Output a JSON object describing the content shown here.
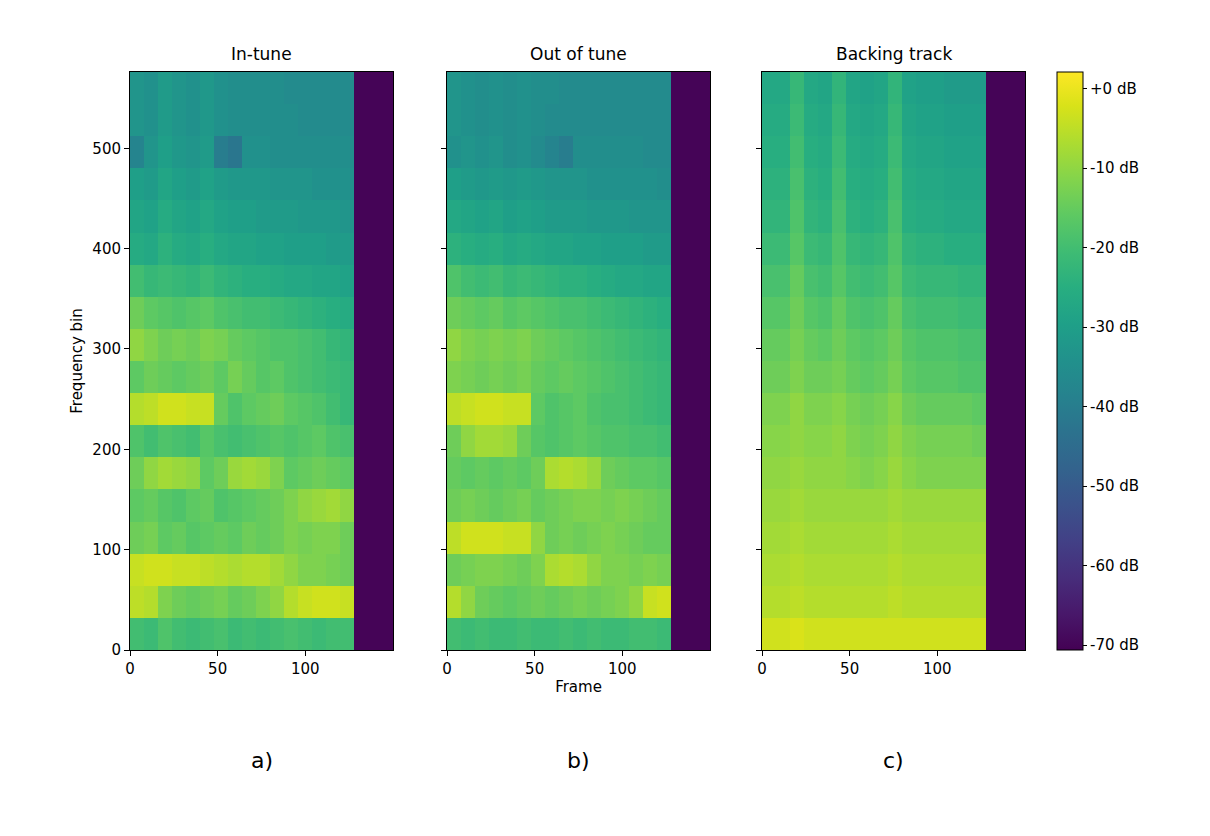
{
  "chart_data": [
    {
      "type": "heatmap",
      "title": "In-tune",
      "ylabel": "Frequency bin",
      "panel_label": "a)",
      "color": "viridis",
      "xlim": [
        0,
        150
      ],
      "ylim": [
        0,
        576
      ],
      "xticks": [
        0,
        50,
        100
      ],
      "yticks": [
        0,
        100,
        200,
        300,
        400,
        500
      ],
      "zlim": [
        -70.6,
        2.1
      ],
      "frame_edges": [
        0,
        8,
        16,
        24,
        32,
        40,
        48,
        56,
        64,
        72,
        80,
        88,
        96,
        104,
        112,
        120,
        128,
        150
      ],
      "bin_edges": [
        0,
        32,
        64,
        96,
        128,
        160,
        192,
        224,
        256,
        288,
        320,
        352,
        384,
        416,
        448,
        480,
        512,
        544,
        576
      ],
      "z": [
        [
          -20,
          -21,
          -18,
          -20,
          -21,
          -20,
          -19,
          -21,
          -20,
          -21,
          -20,
          -19,
          -20,
          -21,
          -20,
          -20,
          -70
        ],
        [
          -5,
          -6,
          -12,
          -14,
          -15,
          -14,
          -13,
          -15,
          -14,
          -12,
          -10,
          -6,
          -4,
          -3,
          -3,
          -4,
          -70
        ],
        [
          -4,
          -3,
          -3,
          -4,
          -4,
          -5,
          -6,
          -7,
          -6,
          -6,
          -8,
          -10,
          -12,
          -12,
          -13,
          -14,
          -70
        ],
        [
          -14,
          -13,
          -16,
          -15,
          -17,
          -16,
          -15,
          -16,
          -14,
          -15,
          -14,
          -12,
          -13,
          -12,
          -12,
          -14,
          -70
        ],
        [
          -16,
          -15,
          -17,
          -18,
          -16,
          -15,
          -18,
          -17,
          -16,
          -15,
          -14,
          -12,
          -10,
          -9,
          -8,
          -10,
          -70
        ],
        [
          -14,
          -10,
          -8,
          -9,
          -10,
          -16,
          -14,
          -9,
          -8,
          -9,
          -12,
          -16,
          -15,
          -14,
          -15,
          -16,
          -70
        ],
        [
          -18,
          -20,
          -18,
          -19,
          -20,
          -17,
          -19,
          -20,
          -19,
          -18,
          -17,
          -18,
          -17,
          -16,
          -18,
          -19,
          -70
        ],
        [
          -6,
          -5,
          -3,
          -3,
          -4,
          -4,
          -15,
          -18,
          -16,
          -15,
          -14,
          -16,
          -17,
          -18,
          -20,
          -22,
          -70
        ],
        [
          -16,
          -14,
          -15,
          -16,
          -15,
          -14,
          -16,
          -13,
          -15,
          -17,
          -16,
          -18,
          -19,
          -20,
          -21,
          -22,
          -70
        ],
        [
          -10,
          -12,
          -14,
          -13,
          -14,
          -12,
          -13,
          -15,
          -16,
          -17,
          -18,
          -18,
          -19,
          -20,
          -22,
          -23,
          -70
        ],
        [
          -14,
          -16,
          -17,
          -18,
          -17,
          -16,
          -18,
          -19,
          -20,
          -20,
          -21,
          -22,
          -23,
          -24,
          -25,
          -26,
          -70
        ],
        [
          -20,
          -22,
          -21,
          -22,
          -23,
          -21,
          -23,
          -24,
          -25,
          -25,
          -26,
          -27,
          -27,
          -28,
          -28,
          -29,
          -70
        ],
        [
          -26,
          -27,
          -24,
          -26,
          -27,
          -25,
          -27,
          -28,
          -28,
          -29,
          -29,
          -30,
          -30,
          -30,
          -31,
          -31,
          -70
        ],
        [
          -28,
          -29,
          -26,
          -28,
          -29,
          -27,
          -29,
          -30,
          -30,
          -31,
          -31,
          -31,
          -32,
          -32,
          -32,
          -33,
          -70
        ],
        [
          -30,
          -31,
          -28,
          -30,
          -31,
          -29,
          -31,
          -32,
          -32,
          -32,
          -33,
          -33,
          -33,
          -34,
          -34,
          -34,
          -70
        ],
        [
          -38,
          -33,
          -30,
          -32,
          -33,
          -31,
          -40,
          -42,
          -34,
          -34,
          -35,
          -35,
          -35,
          -35,
          -35,
          -35,
          -70
        ],
        [
          -33,
          -34,
          -31,
          -33,
          -34,
          -32,
          -34,
          -35,
          -35,
          -35,
          -35,
          -35,
          -36,
          -36,
          -36,
          -36,
          -70
        ],
        [
          -33,
          -34,
          -31,
          -33,
          -34,
          -32,
          -34,
          -35,
          -35,
          -35,
          -35,
          -36,
          -36,
          -36,
          -36,
          -36,
          -70
        ]
      ]
    },
    {
      "type": "heatmap",
      "title": "Out of tune",
      "xlabel": "Frame",
      "panel_label": "b)",
      "color": "viridis",
      "tick_labels": "x",
      "xlim": [
        0,
        150
      ],
      "ylim": [
        0,
        576
      ],
      "xticks": [
        0,
        50,
        100
      ],
      "yticks": [
        0,
        100,
        200,
        300,
        400,
        500
      ],
      "zlim": [
        -70.6,
        2.1
      ],
      "frame_edges": [
        0,
        8,
        16,
        24,
        32,
        40,
        48,
        56,
        64,
        72,
        80,
        88,
        96,
        104,
        112,
        120,
        128,
        150
      ],
      "bin_edges": [
        0,
        32,
        64,
        96,
        128,
        160,
        192,
        224,
        256,
        288,
        320,
        352,
        384,
        416,
        448,
        480,
        512,
        544,
        576
      ],
      "z": [
        [
          -20,
          -21,
          -20,
          -21,
          -21,
          -20,
          -21,
          -21,
          -20,
          -21,
          -20,
          -21,
          -21,
          -20,
          -20,
          -21,
          -70
        ],
        [
          -6,
          -10,
          -14,
          -15,
          -16,
          -15,
          -14,
          -15,
          -14,
          -13,
          -14,
          -13,
          -12,
          -10,
          -4,
          -3,
          -70
        ],
        [
          -14,
          -13,
          -12,
          -12,
          -13,
          -14,
          -12,
          -7,
          -6,
          -7,
          -10,
          -12,
          -12,
          -13,
          -12,
          -13,
          -70
        ],
        [
          -5,
          -3,
          -3,
          -3,
          -4,
          -4,
          -10,
          -14,
          -13,
          -14,
          -13,
          -12,
          -13,
          -14,
          -15,
          -15,
          -70
        ],
        [
          -14,
          -13,
          -14,
          -15,
          -14,
          -13,
          -15,
          -14,
          -13,
          -12,
          -12,
          -13,
          -12,
          -13,
          -14,
          -15,
          -70
        ],
        [
          -15,
          -16,
          -15,
          -16,
          -15,
          -16,
          -14,
          -7,
          -6,
          -7,
          -9,
          -14,
          -15,
          -16,
          -16,
          -17,
          -70
        ],
        [
          -14,
          -10,
          -8,
          -8,
          -9,
          -14,
          -17,
          -18,
          -17,
          -16,
          -17,
          -18,
          -18,
          -19,
          -19,
          -20,
          -70
        ],
        [
          -5,
          -4,
          -3,
          -3,
          -4,
          -4,
          -16,
          -18,
          -17,
          -16,
          -18,
          -19,
          -19,
          -20,
          -21,
          -22,
          -70
        ],
        [
          -12,
          -13,
          -14,
          -13,
          -14,
          -13,
          -15,
          -16,
          -15,
          -16,
          -17,
          -18,
          -19,
          -20,
          -21,
          -22,
          -70
        ],
        [
          -10,
          -12,
          -13,
          -12,
          -13,
          -12,
          -14,
          -15,
          -16,
          -17,
          -18,
          -19,
          -20,
          -21,
          -22,
          -23,
          -70
        ],
        [
          -14,
          -15,
          -16,
          -15,
          -17,
          -16,
          -17,
          -18,
          -19,
          -19,
          -20,
          -21,
          -22,
          -23,
          -24,
          -25,
          -70
        ],
        [
          -18,
          -20,
          -21,
          -20,
          -22,
          -21,
          -22,
          -23,
          -24,
          -24,
          -25,
          -26,
          -27,
          -27,
          -28,
          -28,
          -70
        ],
        [
          -24,
          -25,
          -26,
          -25,
          -27,
          -26,
          -27,
          -28,
          -28,
          -29,
          -29,
          -30,
          -30,
          -30,
          -31,
          -31,
          -70
        ],
        [
          -27,
          -28,
          -29,
          -28,
          -30,
          -29,
          -30,
          -31,
          -31,
          -31,
          -32,
          -32,
          -32,
          -33,
          -33,
          -33,
          -70
        ],
        [
          -30,
          -31,
          -32,
          -31,
          -32,
          -31,
          -32,
          -33,
          -33,
          -33,
          -34,
          -34,
          -34,
          -34,
          -34,
          -35,
          -70
        ],
        [
          -34,
          -33,
          -34,
          -33,
          -35,
          -34,
          -36,
          -38,
          -40,
          -35,
          -35,
          -35,
          -35,
          -35,
          -36,
          -36,
          -70
        ],
        [
          -33,
          -34,
          -35,
          -34,
          -35,
          -34,
          -35,
          -36,
          -36,
          -36,
          -36,
          -36,
          -36,
          -36,
          -36,
          -36,
          -70
        ],
        [
          -33,
          -34,
          -35,
          -34,
          -35,
          -34,
          -35,
          -35,
          -36,
          -36,
          -36,
          -36,
          -36,
          -36,
          -36,
          -36,
          -70
        ]
      ]
    },
    {
      "type": "heatmap",
      "title": "Backing track",
      "panel_label": "c)",
      "color": "viridis",
      "tick_labels": "x",
      "xlim": [
        0,
        150
      ],
      "ylim": [
        0,
        576
      ],
      "xticks": [
        0,
        50,
        100
      ],
      "yticks": [
        0,
        100,
        200,
        300,
        400,
        500
      ],
      "zlim": [
        -70.6,
        2.1
      ],
      "colorbar_ticks": [
        {
          "value": 0,
          "label": "+0 dB"
        },
        {
          "value": -10,
          "label": "-10 dB"
        },
        {
          "value": -20,
          "label": "-20 dB"
        },
        {
          "value": -30,
          "label": "-30 dB"
        },
        {
          "value": -40,
          "label": "-40 dB"
        },
        {
          "value": -50,
          "label": "-50 dB"
        },
        {
          "value": -60,
          "label": "-60 dB"
        },
        {
          "value": -70,
          "label": "-70 dB"
        }
      ],
      "frame_edges": [
        0,
        8,
        16,
        24,
        32,
        40,
        48,
        56,
        64,
        72,
        80,
        88,
        96,
        104,
        112,
        120,
        128,
        150
      ],
      "bin_edges": [
        0,
        32,
        64,
        96,
        128,
        160,
        192,
        224,
        256,
        288,
        320,
        352,
        384,
        416,
        448,
        480,
        512,
        544,
        576
      ],
      "z": [
        [
          -3,
          -3,
          -2,
          -3,
          -3,
          -3,
          -3,
          -3,
          -3,
          -3,
          -3,
          -3,
          -3,
          -3,
          -3,
          -3,
          -70
        ],
        [
          -6,
          -6,
          -5,
          -6,
          -6,
          -6,
          -6,
          -6,
          -6,
          -5,
          -6,
          -6,
          -6,
          -6,
          -6,
          -6,
          -70
        ],
        [
          -7,
          -7,
          -6,
          -7,
          -7,
          -7,
          -7,
          -7,
          -7,
          -6,
          -7,
          -7,
          -7,
          -7,
          -7,
          -7,
          -70
        ],
        [
          -8,
          -8,
          -7,
          -8,
          -8,
          -8,
          -8,
          -8,
          -8,
          -7,
          -8,
          -8,
          -8,
          -8,
          -8,
          -8,
          -70
        ],
        [
          -9,
          -9,
          -8,
          -9,
          -9,
          -9,
          -9,
          -9,
          -9,
          -8,
          -9,
          -9,
          -9,
          -9,
          -9,
          -9,
          -70
        ],
        [
          -10,
          -10,
          -9,
          -10,
          -10,
          -10,
          -11,
          -12,
          -11,
          -9,
          -11,
          -12,
          -12,
          -12,
          -12,
          -12,
          -70
        ],
        [
          -11,
          -11,
          -10,
          -11,
          -11,
          -10,
          -12,
          -13,
          -12,
          -10,
          -12,
          -13,
          -13,
          -13,
          -13,
          -14,
          -70
        ],
        [
          -12,
          -12,
          -10,
          -12,
          -12,
          -11,
          -13,
          -14,
          -13,
          -11,
          -14,
          -15,
          -15,
          -15,
          -15,
          -16,
          -70
        ],
        [
          -14,
          -14,
          -12,
          -14,
          -14,
          -13,
          -15,
          -16,
          -15,
          -13,
          -16,
          -17,
          -17,
          -17,
          -18,
          -18,
          -70
        ],
        [
          -15,
          -15,
          -13,
          -15,
          -16,
          -14,
          -16,
          -17,
          -16,
          -14,
          -17,
          -18,
          -18,
          -18,
          -19,
          -19,
          -70
        ],
        [
          -17,
          -17,
          -14,
          -17,
          -18,
          -15,
          -18,
          -19,
          -18,
          -15,
          -19,
          -20,
          -20,
          -20,
          -21,
          -21,
          -70
        ],
        [
          -19,
          -19,
          -15,
          -19,
          -20,
          -17,
          -20,
          -21,
          -20,
          -17,
          -21,
          -22,
          -22,
          -22,
          -23,
          -23,
          -70
        ],
        [
          -21,
          -21,
          -17,
          -21,
          -22,
          -18,
          -22,
          -23,
          -22,
          -18,
          -23,
          -24,
          -24,
          -25,
          -25,
          -25,
          -70
        ],
        [
          -23,
          -23,
          -18,
          -23,
          -24,
          -19,
          -24,
          -25,
          -24,
          -19,
          -25,
          -26,
          -26,
          -27,
          -27,
          -27,
          -70
        ],
        [
          -24,
          -24,
          -19,
          -24,
          -25,
          -20,
          -25,
          -26,
          -25,
          -20,
          -26,
          -27,
          -27,
          -28,
          -28,
          -28,
          -70
        ],
        [
          -25,
          -25,
          -20,
          -25,
          -26,
          -21,
          -26,
          -27,
          -26,
          -21,
          -27,
          -28,
          -28,
          -29,
          -29,
          -29,
          -70
        ],
        [
          -26,
          -26,
          -21,
          -26,
          -27,
          -22,
          -27,
          -28,
          -27,
          -22,
          -28,
          -29,
          -29,
          -30,
          -30,
          -30,
          -70
        ],
        [
          -27,
          -27,
          -22,
          -27,
          -28,
          -23,
          -28,
          -29,
          -28,
          -23,
          -29,
          -30,
          -30,
          -31,
          -31,
          -31,
          -70
        ]
      ]
    }
  ]
}
